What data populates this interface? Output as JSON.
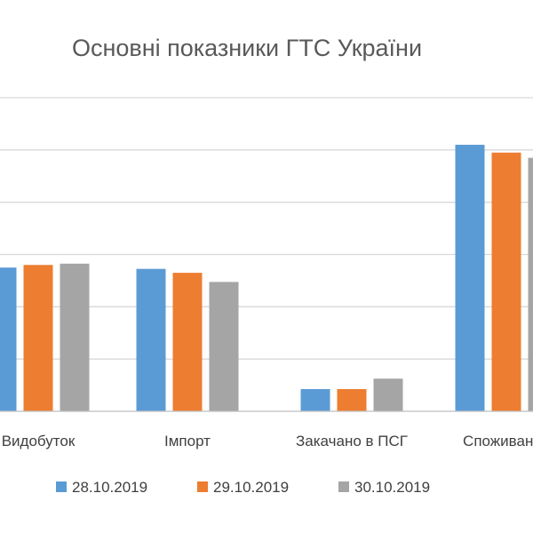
{
  "chart_data": {
    "type": "bar",
    "title": "Основні показники ГТС України",
    "categories": [
      "Видобуток",
      "Імпорт",
      "Закачано в ПСГ",
      "Споживання"
    ],
    "series": [
      {
        "name": "28.10.2019",
        "color": "#5B9BD5",
        "values": [
          55,
          54.5,
          8.5,
          102
        ]
      },
      {
        "name": "29.10.2019",
        "color": "#ED7D31",
        "values": [
          56,
          53,
          8.5,
          99
        ]
      },
      {
        "name": "30.10.2019",
        "color": "#A5A5A5",
        "values": [
          56.5,
          49.5,
          12.5,
          97
        ]
      }
    ],
    "ylim": [
      0,
      120
    ],
    "grid": true,
    "legend_position": "bottom"
  }
}
